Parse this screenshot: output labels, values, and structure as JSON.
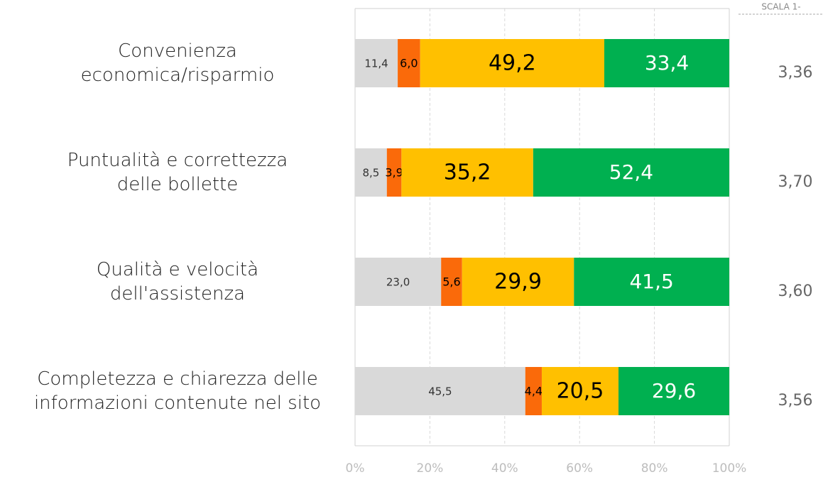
{
  "chart_data": {
    "type": "stacked-barh",
    "subtitle": "SCALA 1-",
    "categories": [
      [
        "Convenienza",
        "economica/risparmio"
      ],
      [
        "Puntualità e correttezza",
        "delle bollette"
      ],
      [
        "Qualità e velocità",
        "dell'assistenza"
      ],
      [
        "Completezza e chiarezza delle",
        "informazioni contenute nel sito"
      ]
    ],
    "series": [
      {
        "color": "#d9d9d9",
        "values": [
          11.4,
          8.5,
          23.0,
          45.5
        ],
        "value_labels": [
          "11,4",
          "8,5",
          "23,0",
          "45,5"
        ]
      },
      {
        "color": "#fa6a0a",
        "values": [
          6.0,
          3.9,
          5.6,
          4.4
        ],
        "value_labels": [
          "6,0",
          "3,9",
          "5,6",
          "4,4"
        ]
      },
      {
        "color": "#ffc000",
        "values": [
          49.2,
          35.2,
          29.9,
          20.5
        ],
        "value_labels": [
          "49,2",
          "35,2",
          "29,9",
          "20,5"
        ]
      },
      {
        "color": "#00b050",
        "values": [
          33.4,
          52.4,
          41.5,
          29.6
        ],
        "value_labels": [
          "33,4",
          "52,4",
          "41,5",
          "29,6"
        ]
      }
    ],
    "annotations": [
      "3,36",
      "3,70",
      "3,60",
      "3,56"
    ],
    "xlim": [
      0,
      100
    ],
    "xticks": [
      {
        "value": 0,
        "label": "0%"
      },
      {
        "value": 20,
        "label": "20%"
      },
      {
        "value": 40,
        "label": "40%"
      },
      {
        "value": 60,
        "label": "60%"
      },
      {
        "value": 80,
        "label": "80%"
      },
      {
        "value": 100,
        "label": "100%"
      }
    ],
    "grid": true
  }
}
